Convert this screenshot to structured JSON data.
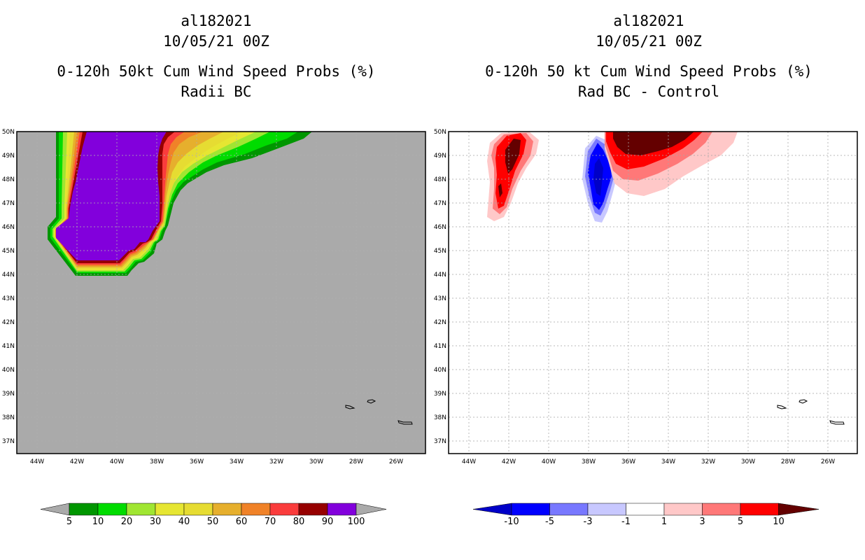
{
  "left_panel": {
    "storm_id": "al182021",
    "datetime": "10/05/21 00Z",
    "title_line1": "0-120h 50kt Cum Wind Speed Probs (%)",
    "title_line2": "Radii BC",
    "background_color": "#aaaaaa",
    "colorbar": {
      "labels": [
        "5",
        "10",
        "20",
        "30",
        "40",
        "50",
        "60",
        "70",
        "80",
        "90",
        "100"
      ],
      "colors": [
        "#009600",
        "#00dc00",
        "#a0e632",
        "#e6e632",
        "#e6dc32",
        "#e6af2d",
        "#f08228",
        "#fa3c3c",
        "#960000",
        "#8200dc"
      ]
    }
  },
  "right_panel": {
    "storm_id": "al182021",
    "datetime": "10/05/21 00Z",
    "title_line1": "0-120h 50 kt Cum Wind Speed Probs (%)",
    "title_line2": "Rad BC - Control",
    "background_color": "#ffffff",
    "colorbar": {
      "labels": [
        "-10",
        "-5",
        "-3",
        "-1",
        "1",
        "3",
        "5",
        "10"
      ],
      "colors": [
        "#0000c8",
        "#0000ff",
        "#7878ff",
        "#c8c8ff",
        "#ffffff",
        "#ffc8c8",
        "#ff7878",
        "#ff0000",
        "#640000"
      ]
    }
  },
  "axes": {
    "lat_labels": [
      "50N",
      "49N",
      "48N",
      "47N",
      "46N",
      "45N",
      "44N",
      "43N",
      "42N",
      "41N",
      "40N",
      "39N",
      "38N",
      "37N"
    ],
    "lon_labels": [
      "44W",
      "42W",
      "40W",
      "38W",
      "36W",
      "34W",
      "32W",
      "30W",
      "28W",
      "26W"
    ]
  }
}
